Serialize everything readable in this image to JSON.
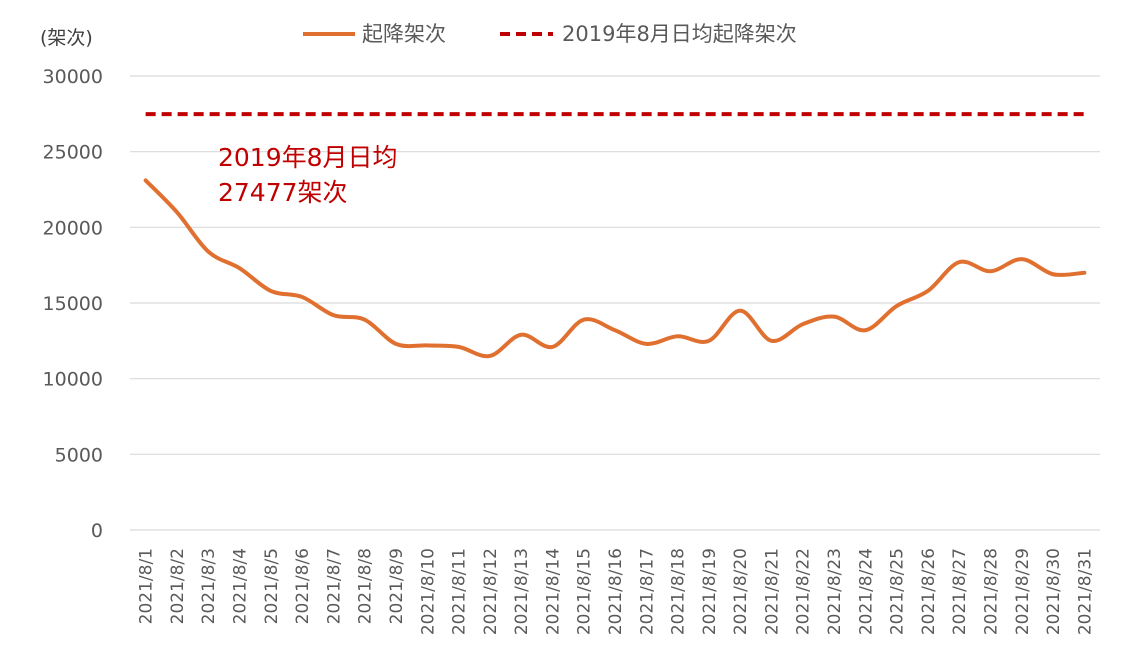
{
  "chart_data": {
    "type": "line",
    "y_unit_label": "(架次)",
    "ylim": [
      0,
      30000
    ],
    "yticks": [
      0,
      5000,
      10000,
      15000,
      20000,
      25000,
      30000
    ],
    "grid": true,
    "legend_position": "top",
    "categories": [
      "2021/8/1",
      "2021/8/2",
      "2021/8/3",
      "2021/8/4",
      "2021/8/5",
      "2021/8/6",
      "2021/8/7",
      "2021/8/8",
      "2021/8/9",
      "2021/8/10",
      "2021/8/11",
      "2021/8/12",
      "2021/8/13",
      "2021/8/14",
      "2021/8/15",
      "2021/8/16",
      "2021/8/17",
      "2021/8/18",
      "2021/8/19",
      "2021/8/20",
      "2021/8/21",
      "2021/8/22",
      "2021/8/23",
      "2021/8/24",
      "2021/8/25",
      "2021/8/26",
      "2021/8/27",
      "2021/8/28",
      "2021/8/29",
      "2021/8/30",
      "2021/8/31"
    ],
    "series": [
      {
        "name": "起降架次",
        "color": "#E07030",
        "style": "solid",
        "values": [
          23100,
          21000,
          18400,
          17300,
          15800,
          15400,
          14200,
          13900,
          12300,
          12200,
          12100,
          11500,
          12900,
          12100,
          13900,
          13200,
          12300,
          12800,
          12500,
          14500,
          12500,
          13600,
          14100,
          13200,
          14800,
          15800,
          17700,
          17100,
          17900,
          16900,
          17000
        ]
      },
      {
        "name": "2019年8月日均起降架次",
        "color": "#C00000",
        "style": "dashed",
        "values": [
          27477,
          27477,
          27477,
          27477,
          27477,
          27477,
          27477,
          27477,
          27477,
          27477,
          27477,
          27477,
          27477,
          27477,
          27477,
          27477,
          27477,
          27477,
          27477,
          27477,
          27477,
          27477,
          27477,
          27477,
          27477,
          27477,
          27477,
          27477,
          27477,
          27477,
          27477
        ]
      }
    ],
    "annotation": {
      "line1": "2019年8月日均",
      "line2": "27477架次",
      "color": "#C00000"
    }
  }
}
